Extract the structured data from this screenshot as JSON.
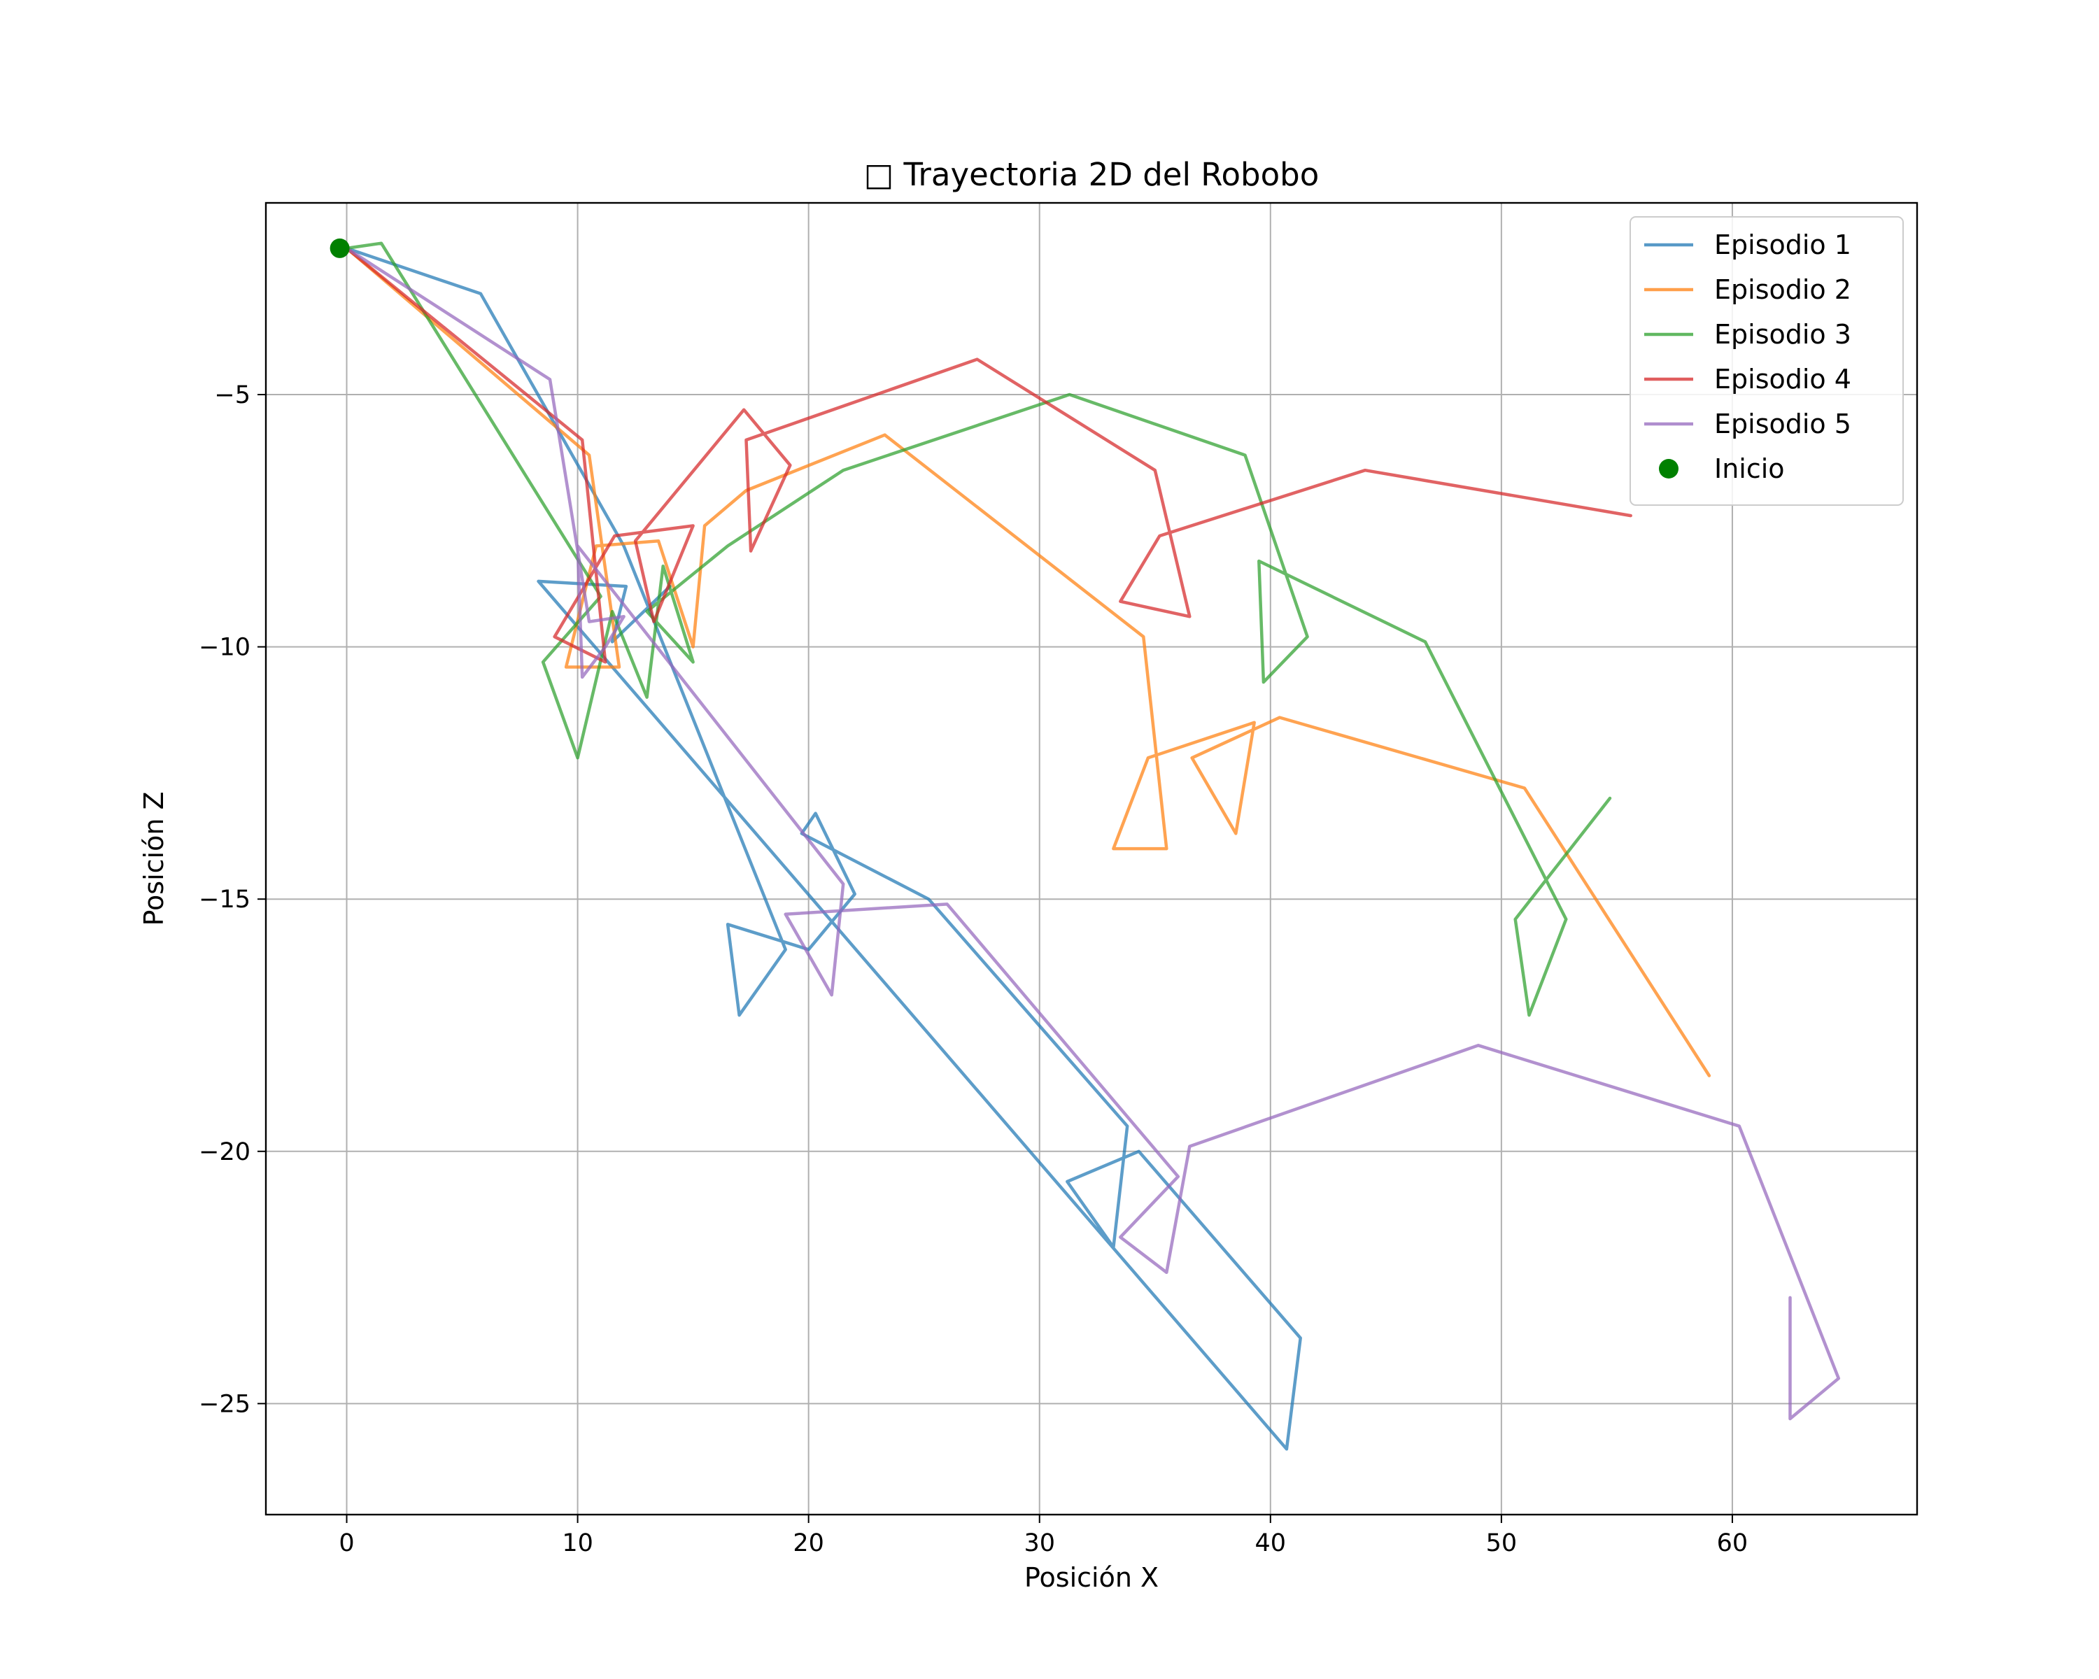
{
  "chart_data": {
    "type": "line",
    "title": "□ Trayectoria 2D del Robobo",
    "xlabel": "Posición X",
    "ylabel": "Posición Z",
    "xlim": [
      -3.5,
      68
    ],
    "ylim": [
      -27.2,
      -1.2
    ],
    "xticks": [
      0,
      10,
      20,
      30,
      40,
      50,
      60
    ],
    "yticks": [
      -5,
      -10,
      -15,
      -20,
      -25
    ],
    "ytick_labels": [
      "−5",
      "−10",
      "−15",
      "−20",
      "−25"
    ],
    "grid": true,
    "legend_position": "top-right",
    "series": [
      {
        "name": "Episodio 1",
        "color": "#1f77b4",
        "x": [
          0,
          5.8,
          12,
          19,
          17,
          16.5,
          20,
          22,
          20.3,
          19.7,
          25.2,
          33.8,
          33.2,
          31.2,
          34.3,
          41.3,
          40.7,
          8.3,
          12.1,
          11.5,
          14
        ],
        "y": [
          -2.1,
          -3,
          -8,
          -16,
          -17.3,
          -15.5,
          -16,
          -14.9,
          -13.3,
          -13.7,
          -15,
          -19.5,
          -21.9,
          -20.6,
          -20,
          -23.7,
          -25.9,
          -8.7,
          -8.8,
          -9.9,
          -8.8
        ]
      },
      {
        "name": "Episodio 2",
        "color": "#ff7f0e",
        "x": [
          0,
          10.5,
          11.8,
          9.5,
          10.8,
          13.5,
          15,
          15.5,
          17.3,
          23.3,
          34.5,
          35.5,
          33.2,
          34.7,
          39.3,
          38.5,
          36.6,
          40.4,
          51,
          59
        ],
        "y": [
          -2.1,
          -6.2,
          -10.4,
          -10.4,
          -8,
          -7.9,
          -10,
          -7.6,
          -6.9,
          -5.8,
          -9.8,
          -14,
          -14,
          -12.2,
          -11.5,
          -13.7,
          -12.2,
          -11.4,
          -12.8,
          -18.5
        ]
      },
      {
        "name": "Episodio 3",
        "color": "#2ca02c",
        "x": [
          0,
          1.5,
          11,
          8.5,
          10,
          11.5,
          13,
          13.7,
          15,
          13,
          16.5,
          21.5,
          31.3,
          38.9,
          41.6,
          39.7,
          39.5,
          46.7,
          52.8,
          51.2,
          50.6,
          54.7
        ],
        "y": [
          -2.1,
          -2,
          -9,
          -10.3,
          -12.2,
          -9.3,
          -11,
          -8.4,
          -10.3,
          -9.3,
          -8,
          -6.5,
          -5,
          -6.2,
          -9.8,
          -10.7,
          -8.3,
          -9.9,
          -15.4,
          -17.3,
          -15.4,
          -13
        ],
        "extra": []
      },
      {
        "name": "Episodio 4",
        "color": "#d62728",
        "x": [
          0,
          10.2,
          11.2,
          9,
          11.6,
          15,
          13.3,
          12.5,
          17.2,
          19.2,
          17.5,
          17.3,
          27.3,
          35,
          36.5,
          33.5,
          35.2,
          44.1,
          55.6
        ],
        "y": [
          -2.1,
          -5.9,
          -10.3,
          -9.8,
          -7.8,
          -7.6,
          -9.5,
          -7.9,
          -5.3,
          -6.4,
          -8.1,
          -5.9,
          -4.3,
          -6.5,
          -9.4,
          -9.1,
          -7.8,
          -6.5,
          -7.4
        ]
      },
      {
        "name": "Episodio 5",
        "color": "#9467bd",
        "x": [
          0,
          8.8,
          10.5,
          12,
          11.2,
          10.2,
          10,
          21.5,
          21,
          19,
          26,
          36,
          33.5,
          35.5,
          36.5,
          49,
          60.3,
          64.6,
          62.5,
          62.5
        ],
        "y": [
          -2.1,
          -4.7,
          -9.5,
          -9.4,
          -10,
          -10.6,
          -8,
          -14.7,
          -16.9,
          -15.3,
          -15.1,
          -20.5,
          -21.7,
          -22.4,
          -19.9,
          -17.9,
          -19.5,
          -24.5,
          -25.3,
          -22.9
        ]
      }
    ],
    "start_point": {
      "name": "Inicio",
      "x": -0.3,
      "y": -2.1,
      "color": "#008000"
    }
  }
}
